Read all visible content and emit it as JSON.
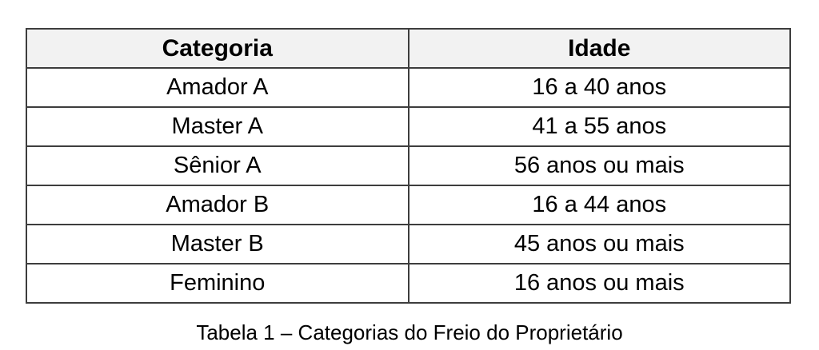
{
  "table": {
    "columns": [
      "Categoria",
      "Idade"
    ],
    "rows": [
      [
        "Amador A",
        "16 a 40 anos"
      ],
      [
        "Master A",
        "41 a 55 anos"
      ],
      [
        "Sênior A",
        "56 anos ou mais"
      ],
      [
        "Amador B",
        "16 a 44 anos"
      ],
      [
        "Master B",
        "45 anos ou mais"
      ],
      [
        "Feminino",
        "16 anos ou mais"
      ]
    ]
  },
  "caption": "Tabela 1 – Categorias do Freio do Proprietário",
  "colors": {
    "header_bg": "#f2f2f2",
    "border": "#3d3d3d",
    "text": "#000000",
    "page_bg": "#ffffff"
  }
}
